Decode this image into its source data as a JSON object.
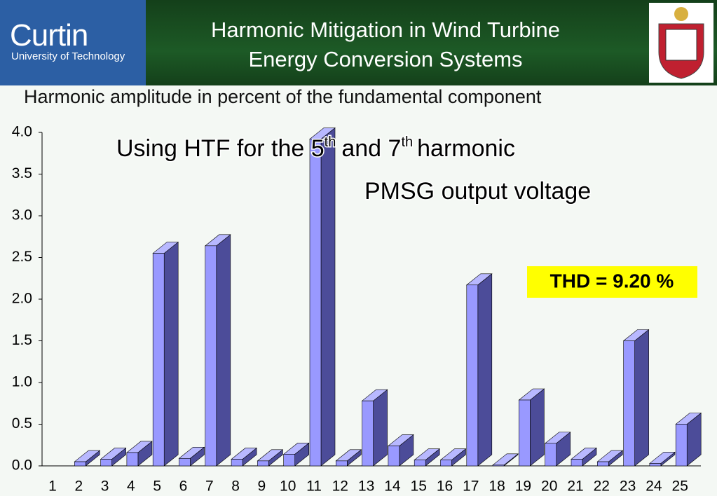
{
  "header": {
    "logo_name": "Curtin",
    "logo_sub": "University of Technology",
    "title_lines": [
      "Harmonic Mitigation in Wind Turbine",
      "Energy Conversion Systems"
    ]
  },
  "chart_data": {
    "type": "bar3d",
    "title": "Harmonic amplitude in percent of the fundamental component",
    "annotation_parts": [
      "Using HTF for the 5",
      "th",
      "and 7",
      "th",
      "harmonic"
    ],
    "subtitle": "PMSG output voltage",
    "thd_label": "THD = 9.20 %",
    "categories": [
      "1",
      "2",
      "3",
      "4",
      "5",
      "6",
      "7",
      "8",
      "9",
      "10",
      "11",
      "12",
      "13",
      "14",
      "15",
      "16",
      "17",
      "18",
      "19",
      "20",
      "21",
      "22",
      "23",
      "24",
      "25"
    ],
    "values": [
      0,
      0.05,
      0.08,
      0.16,
      2.55,
      0.09,
      2.64,
      0.08,
      0.06,
      0.14,
      3.92,
      0.06,
      0.78,
      0.24,
      0.07,
      0.07,
      2.17,
      0.01,
      0.79,
      0.27,
      0.08,
      0.05,
      1.5,
      0.03,
      0.5
    ],
    "color": "#9999ff",
    "side_color": "#4c4c99",
    "top_color": "#b8b8ff",
    "ylim": [
      0,
      4
    ],
    "yticks": [
      {
        "value": 0,
        "label": "0.0"
      },
      {
        "value": 0.5,
        "label": "0.5"
      },
      {
        "value": 1,
        "label": "1.0"
      },
      {
        "value": 1.5,
        "label": "1.5"
      },
      {
        "value": 2,
        "label": "2.0"
      },
      {
        "value": 2.5,
        "label": "2.5"
      },
      {
        "value": 3,
        "label": "3.0"
      },
      {
        "value": 3.5,
        "label": "3.5"
      },
      {
        "value": 4,
        "label": "4.0"
      }
    ]
  }
}
